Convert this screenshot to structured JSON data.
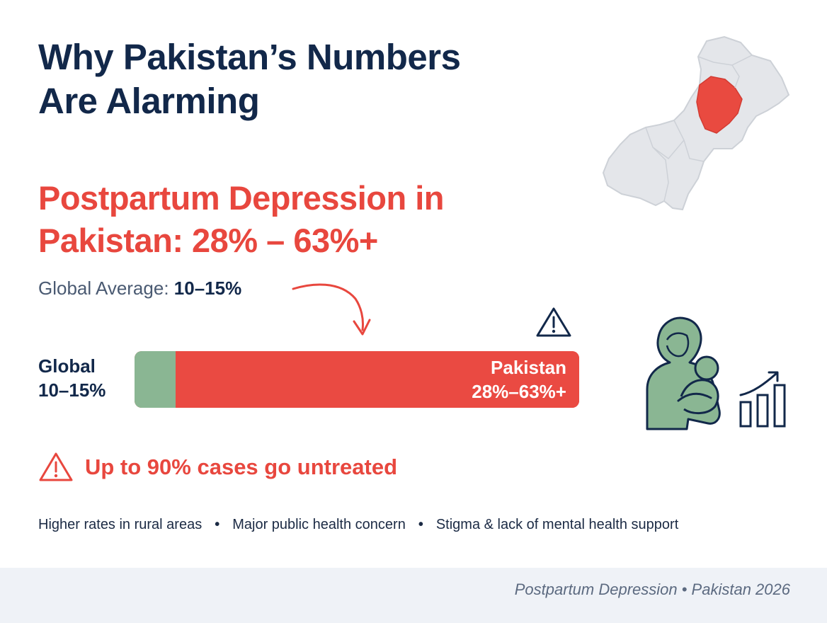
{
  "title": {
    "line1": "Why Pakistan’s Numbers",
    "line2": "Are Alarming"
  },
  "headline": {
    "line1": "Postpartum Depression in",
    "line2": "Pakistan: 28% – 63%+"
  },
  "global_average": {
    "label": "Global Average:",
    "value": "10–15%"
  },
  "comparison_bar": {
    "global_label_line1": "Global",
    "global_label_line2": "10–15%",
    "pakistan_label_line1": "Pakistan",
    "pakistan_label_line2": "28%–63%+",
    "global_fraction": 0.093
  },
  "alert": {
    "text": "Up to 90% cases go untreated"
  },
  "facts": [
    "Higher rates in rural areas",
    "Major public health concern",
    "Stigma & lack of mental health support"
  ],
  "footer": {
    "text": "Postpartum Depression • Pakistan 2026"
  },
  "colors": {
    "navy": "#12284a",
    "red": "#e8473e",
    "green": "#8ab693",
    "map_gray": "#e4e6ea",
    "map_highlight": "#e94a40"
  },
  "icons": [
    "map-pakistan-icon",
    "warning-icon",
    "curved-arrow-icon",
    "mother-baby-icon",
    "growth-chart-icon"
  ]
}
